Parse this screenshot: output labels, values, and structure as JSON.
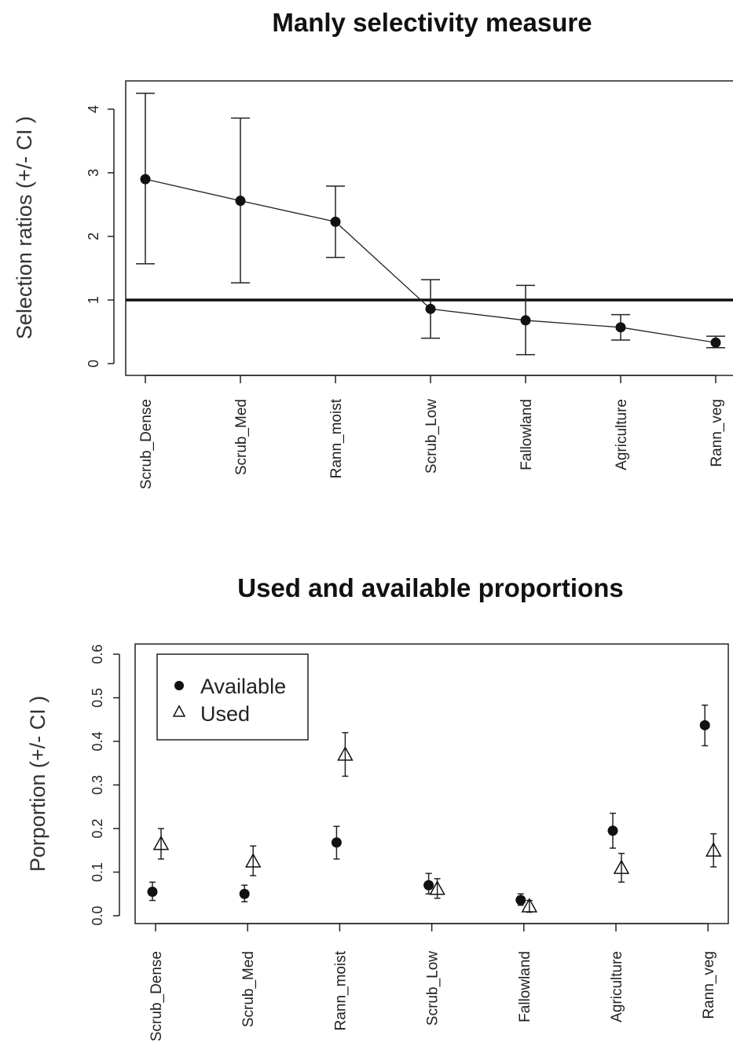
{
  "chart_data": [
    {
      "type": "line",
      "title": "Manly selectivity measure",
      "ylabel": "Selection ratios (+/- CI )",
      "xlabel": "",
      "categories": [
        "Scrub_Dense",
        "Scrub_Med",
        "Rann_moist",
        "Scrub_Low",
        "Fallowland",
        "Agriculture",
        "Rann_veg"
      ],
      "yticks": [
        "0",
        "1",
        "2",
        "3",
        "4"
      ],
      "ylim": [
        -0.2,
        4.5
      ],
      "reference_line": 1.0,
      "series": [
        {
          "values": [
            2.9,
            2.56,
            2.23,
            0.86,
            0.68,
            0.57,
            0.33
          ],
          "ci_low": [
            1.57,
            1.27,
            1.67,
            0.4,
            0.14,
            0.37,
            0.25
          ],
          "ci_high": [
            4.25,
            3.86,
            2.79,
            1.32,
            1.23,
            0.77,
            0.43
          ],
          "marker": "filled-circle"
        }
      ],
      "grid": false
    },
    {
      "type": "scatter",
      "title": "Used and available proportions",
      "ylabel": "Porportion (+/- CI )",
      "xlabel": "",
      "categories": [
        "Scrub_Dense",
        "Scrub_Med",
        "Rann_moist",
        "Scrub_Low",
        "Fallowland",
        "Agriculture",
        "Rann_veg"
      ],
      "yticks": [
        "0.0",
        "0.1",
        "0.2",
        "0.3",
        "0.4",
        "0.5",
        "0.6"
      ],
      "ylim": [
        -0.01,
        0.62
      ],
      "legend": {
        "placement": "top-left",
        "entries": [
          "Available",
          "Used"
        ]
      },
      "series": [
        {
          "name": "Available",
          "marker": "filled-circle",
          "values": [
            0.055,
            0.05,
            0.168,
            0.07,
            0.036,
            0.195,
            0.437
          ],
          "ci_low": [
            0.035,
            0.032,
            0.13,
            0.05,
            0.024,
            0.155,
            0.39
          ],
          "ci_high": [
            0.077,
            0.07,
            0.205,
            0.097,
            0.05,
            0.235,
            0.483
          ]
        },
        {
          "name": "Used",
          "marker": "open-triangle",
          "values": [
            0.165,
            0.125,
            0.37,
            0.062,
            0.022,
            0.11,
            0.15
          ],
          "ci_low": [
            0.13,
            0.092,
            0.32,
            0.04,
            0.008,
            0.077,
            0.112
          ],
          "ci_high": [
            0.2,
            0.16,
            0.42,
            0.085,
            0.035,
            0.143,
            0.188
          ]
        }
      ],
      "grid": false
    }
  ]
}
